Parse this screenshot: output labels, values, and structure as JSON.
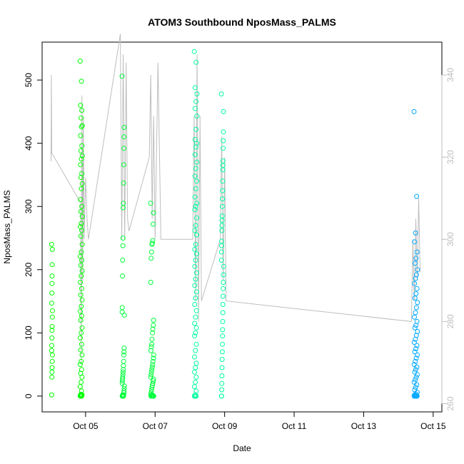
{
  "chart_data": {
    "type": "scatter",
    "title": "ATOM3 Southbound NposMass_PALMS",
    "xlabel": "Date",
    "ylabel": "NposMass_PALMS",
    "x_range": [
      "2017-10-03T18:00",
      "2017-10-15T06:00"
    ],
    "x_ticks": [
      "Oct 05",
      "Oct 07",
      "Oct 09",
      "Oct 11",
      "Oct 13",
      "Oct 15"
    ],
    "x_tick_dates": [
      "2017-10-05",
      "2017-10-07",
      "2017-10-09",
      "2017-10-11",
      "2017-10-13",
      "2017-10-15"
    ],
    "ylim": [
      -25,
      560
    ],
    "y_ticks": [
      0,
      100,
      200,
      300,
      400,
      500
    ],
    "y2lim": [
      258,
      348
    ],
    "y2_ticks": [
      260,
      280,
      300,
      320,
      340
    ],
    "y2_color": "#bebebe",
    "grid": false,
    "point_style": "open-circle",
    "clusters": [
      {
        "time": "2017-10-04T00:50",
        "spread_hours": 0.6,
        "color": "#00ff00",
        "values": [
          240,
          232,
          208,
          190,
          178,
          163,
          147,
          135,
          125,
          110,
          104,
          92,
          80,
          72,
          65,
          55,
          45,
          38,
          30,
          2
        ]
      },
      {
        "time": "2017-10-04T21:00",
        "spread_hours": 1.5,
        "color": "#00ff00",
        "values": [
          530,
          498,
          460,
          452,
          440,
          428,
          426,
          412,
          396,
          388,
          380,
          375,
          366,
          352,
          346,
          336,
          328,
          311,
          300,
          292,
          284,
          273,
          268,
          262,
          253,
          240,
          228,
          221,
          215,
          207,
          198,
          190,
          180,
          170,
          160,
          152,
          142,
          134,
          127,
          120,
          108,
          100,
          92,
          82,
          73,
          65,
          55,
          50,
          42,
          36,
          30,
          22,
          15,
          8,
          2,
          1,
          0,
          0,
          0,
          1,
          2,
          3
        ]
      },
      {
        "time": "2017-10-06T02:00",
        "spread_hours": 1.6,
        "color": "#00ff3c",
        "values": [
          506,
          425,
          410,
          392,
          366,
          337,
          305,
          298,
          250,
          238,
          215,
          190,
          140,
          133,
          128,
          76,
          70,
          65,
          55,
          48,
          42,
          38,
          34,
          30,
          27,
          24,
          20,
          16,
          12,
          8,
          5,
          2,
          0,
          0,
          0,
          1,
          2,
          1,
          0,
          0
        ]
      },
      {
        "time": "2017-10-06T22:00",
        "spread_hours": 2.2,
        "color": "#00ff3c",
        "values": [
          305,
          290,
          272,
          246,
          242,
          240,
          228,
          218,
          180,
          120,
          112,
          106,
          100,
          90,
          82,
          78,
          72,
          65,
          60,
          55,
          50,
          46,
          42,
          38,
          34,
          30,
          27,
          24,
          20,
          17,
          14,
          10,
          6,
          3,
          0,
          0,
          0,
          1,
          2,
          0,
          1,
          0
        ]
      },
      {
        "time": "2017-10-08T04:00",
        "spread_hours": 1.8,
        "color": "#00ffa0",
        "values": [
          545,
          528,
          488,
          478,
          466,
          455,
          443,
          422,
          406,
          400,
          394,
          382,
          370,
          360,
          348,
          340,
          328,
          315,
          305,
          300,
          295,
          282,
          270,
          262,
          255,
          240,
          232,
          225,
          215,
          205,
          195,
          185,
          175,
          165,
          155,
          145,
          135,
          125,
          115,
          108,
          100,
          95,
          82,
          72,
          62,
          52,
          45,
          38,
          30,
          22,
          15,
          8,
          2,
          0,
          0,
          0
        ]
      },
      {
        "time": "2017-10-08T22:30",
        "spread_hours": 1.5,
        "color": "#00ffa0",
        "values": [
          478,
          450,
          418,
          404,
          392,
          372,
          365,
          358,
          340,
          325,
          312,
          300,
          285,
          278,
          270,
          262,
          245,
          238,
          228,
          215,
          205,
          192,
          180,
          170,
          158,
          145,
          132,
          118,
          105,
          95,
          82,
          70,
          58,
          45,
          32,
          20,
          10,
          0,
          0
        ]
      },
      {
        "time": "2017-10-14T12:00",
        "spread_hours": 2.4,
        "color": "#00a8ff",
        "values": [
          450,
          316,
          258,
          244,
          228,
          218,
          210,
          200,
          192,
          186,
          178,
          170,
          162,
          155,
          148,
          140,
          132,
          125,
          118,
          112,
          108,
          102,
          96,
          90,
          85,
          80,
          75,
          70,
          65,
          60,
          55,
          50,
          46,
          42,
          38,
          34,
          30,
          26,
          22,
          18,
          14,
          10,
          6,
          3,
          0,
          0,
          0,
          1,
          2,
          0,
          1,
          0
        ]
      }
    ],
    "series_right_axis": {
      "name": "",
      "color": "#bebebe",
      "note_points": [
        [
          "2017-10-04T00:10",
          319
        ],
        [
          "2017-10-04T00:25",
          340
        ],
        [
          "2017-10-04T00:40",
          321
        ],
        [
          "2017-10-04T20:30",
          309
        ],
        [
          "2017-10-04T21:00",
          270
        ],
        [
          "2017-10-04T21:30",
          335
        ],
        [
          "2017-10-04T22:00",
          290
        ],
        [
          "2017-10-04T22:30",
          330
        ],
        [
          "2017-10-04T23:00",
          300
        ],
        [
          "2017-10-05T00:00",
          315
        ],
        [
          "2017-10-05T01:00",
          305
        ],
        [
          "2017-10-05T02:00",
          300
        ],
        [
          "2017-10-06T00:00",
          350
        ],
        [
          "2017-10-06T01:00",
          300
        ],
        [
          "2017-10-06T02:00",
          345
        ],
        [
          "2017-10-06T03:00",
          300
        ],
        [
          "2017-10-06T04:00",
          343
        ],
        [
          "2017-10-06T05:00",
          305
        ],
        [
          "2017-10-06T06:00",
          302
        ],
        [
          "2017-10-06T20:00",
          320
        ],
        [
          "2017-10-06T21:00",
          340
        ],
        [
          "2017-10-06T22:00",
          305
        ],
        [
          "2017-10-06T23:00",
          330
        ],
        [
          "2017-10-07T00:00",
          300
        ],
        [
          "2017-10-07T02:00",
          343
        ],
        [
          "2017-10-07T04:00",
          300
        ],
        [
          "2017-10-08T02:00",
          300
        ],
        [
          "2017-10-08T03:00",
          330
        ],
        [
          "2017-10-08T04:00",
          285
        ],
        [
          "2017-10-08T05:00",
          345
        ],
        [
          "2017-10-08T06:00",
          280
        ],
        [
          "2017-10-08T07:00",
          330
        ],
        [
          "2017-10-08T08:00",
          285
        ],
        [
          "2017-10-08T21:00",
          300
        ],
        [
          "2017-10-08T22:00",
          325
        ],
        [
          "2017-10-08T23:00",
          290
        ],
        [
          "2017-10-09T00:00",
          320
        ],
        [
          "2017-10-09T01:00",
          285
        ],
        [
          "2017-10-14T09:00",
          280
        ],
        [
          "2017-10-14T10:00",
          300
        ],
        [
          "2017-10-14T11:00",
          285
        ],
        [
          "2017-10-14T12:00",
          305
        ],
        [
          "2017-10-14T13:00",
          290
        ],
        [
          "2017-10-14T14:00",
          310
        ],
        [
          "2017-10-14T15:00",
          292
        ]
      ]
    }
  }
}
